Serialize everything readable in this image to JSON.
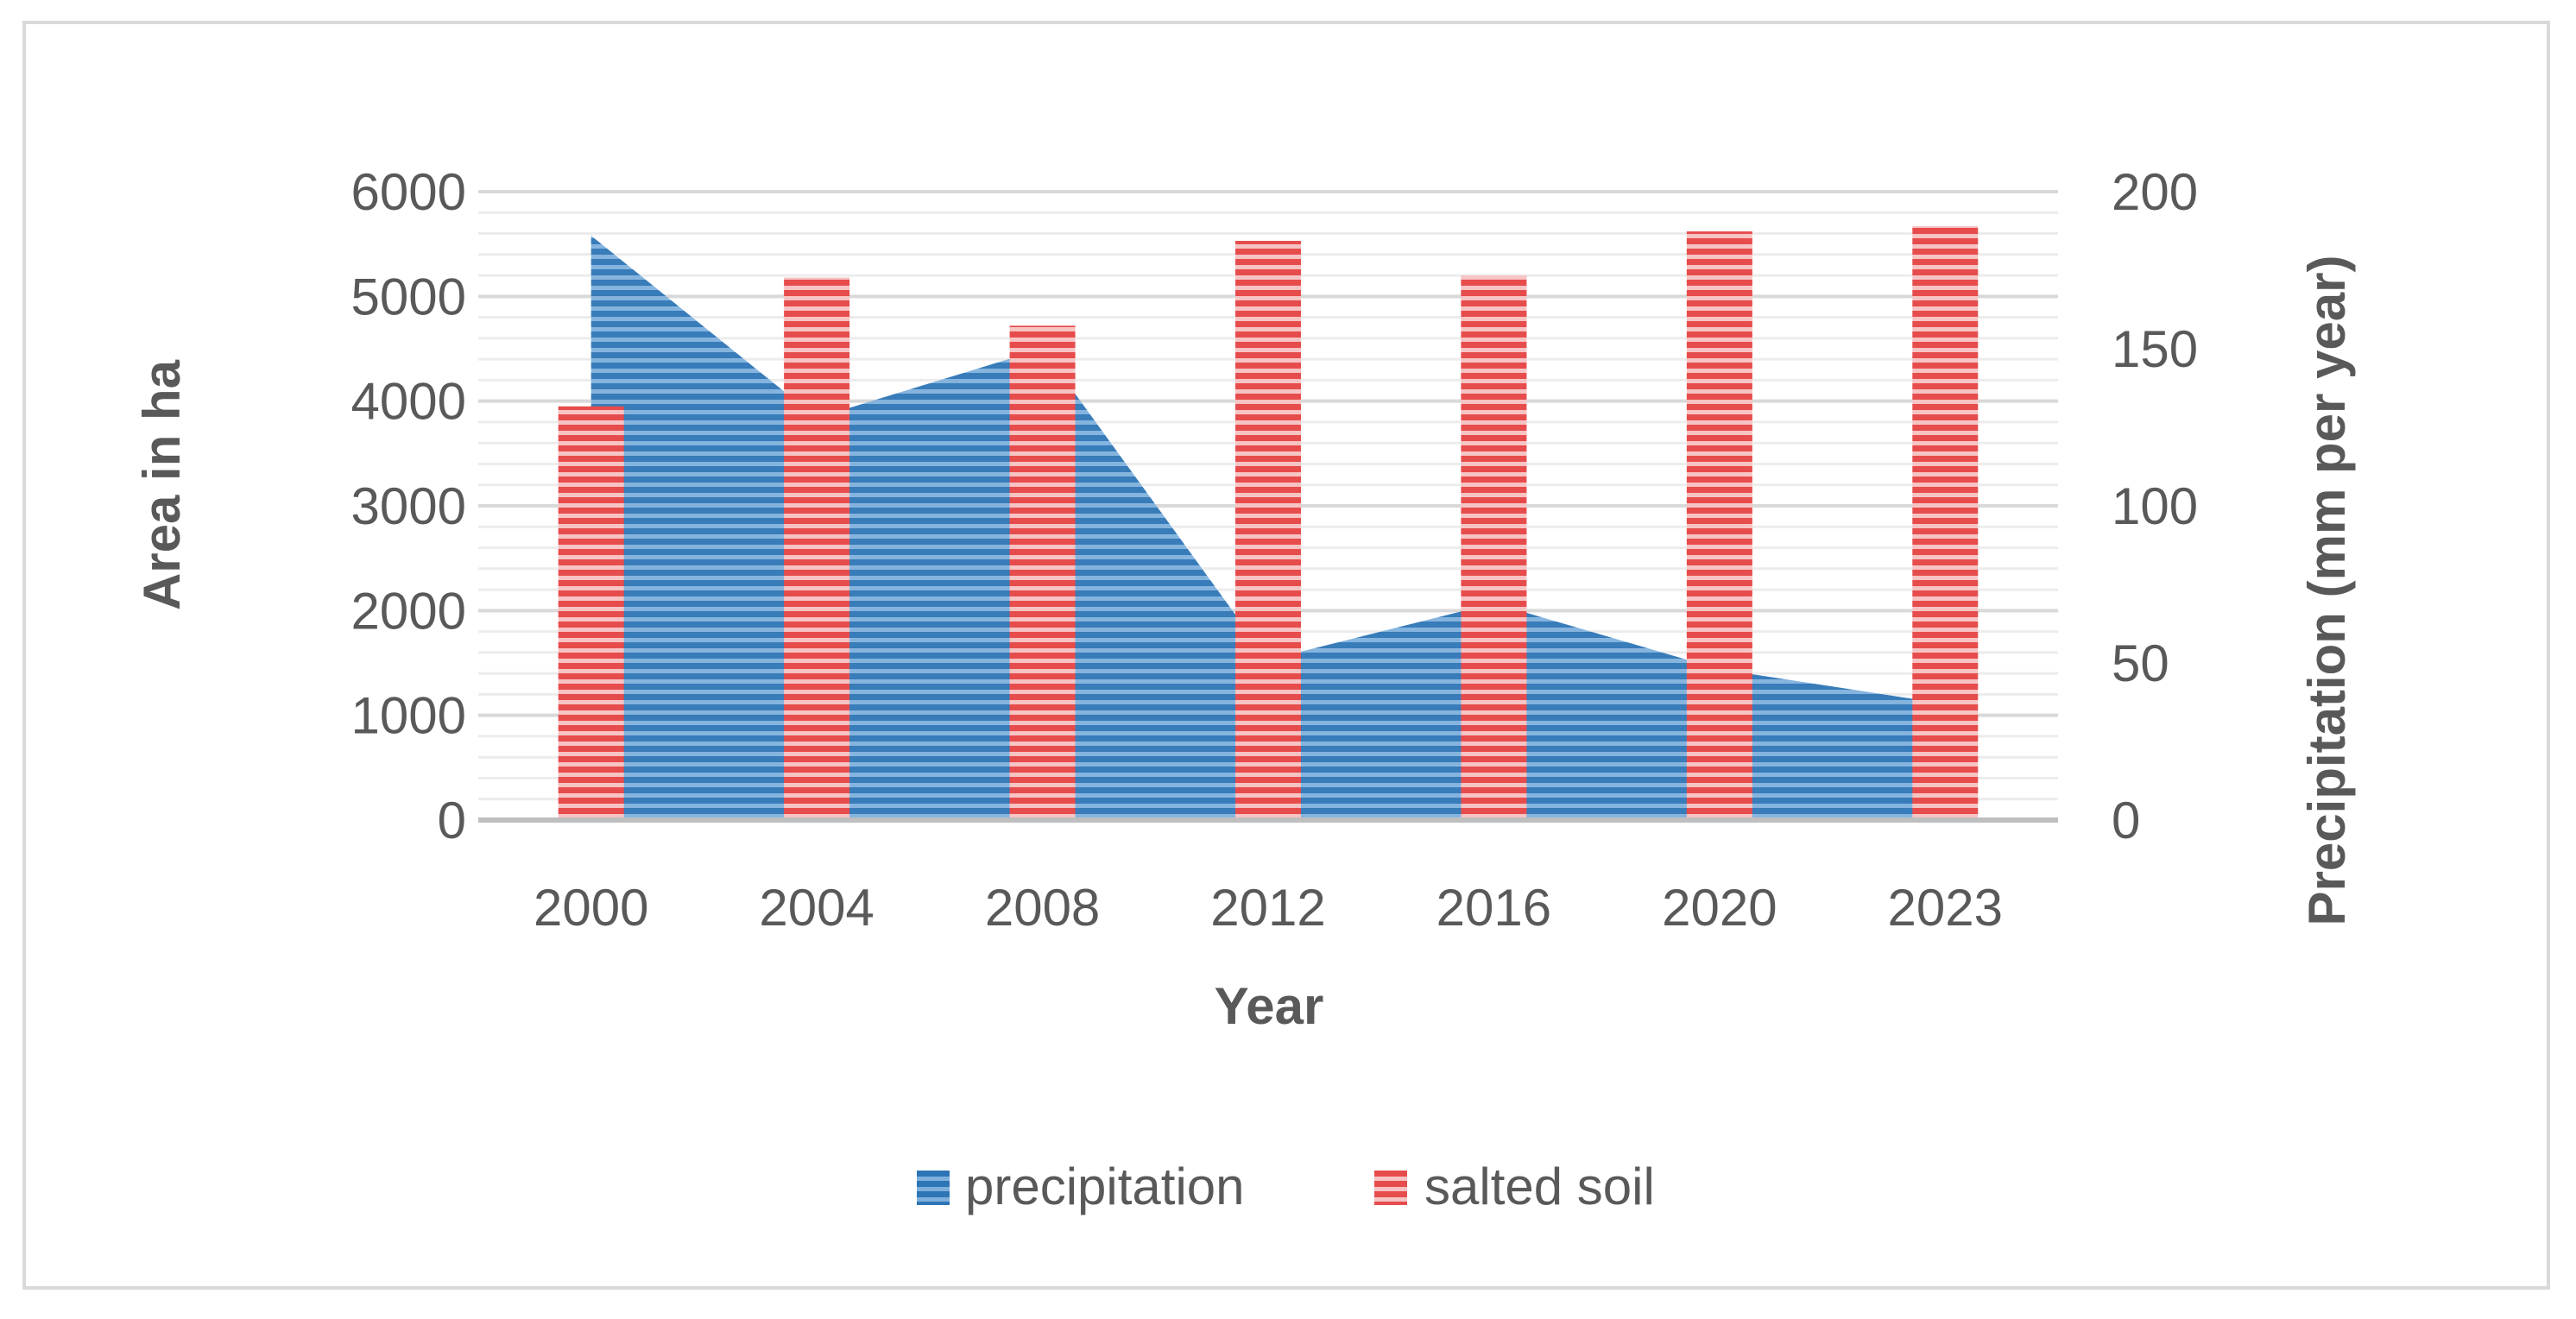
{
  "chart_data": {
    "type": "bar",
    "title": "",
    "categories": [
      "2000",
      "2004",
      "2008",
      "2012",
      "2016",
      "2020",
      "2023"
    ],
    "series": [
      {
        "name": "precipitation",
        "type": "area",
        "axis": "right",
        "color": "#2E75B6",
        "values": [
          186,
          128,
          150,
          51,
          69,
          48,
          37
        ]
      },
      {
        "name": "salted soil",
        "type": "bar",
        "axis": "left",
        "color": "#E74C4C",
        "values": [
          3950,
          5180,
          4720,
          5530,
          5200,
          5620,
          5670
        ]
      }
    ],
    "xlabel": "Year",
    "ylabel": "Area in ha",
    "y2label": "Precipitation (mm per year)",
    "ylim": [
      0,
      6000
    ],
    "y2lim": [
      0,
      200
    ],
    "yticks": [
      "0",
      "1000",
      "2000",
      "3000",
      "4000",
      "5000",
      "6000"
    ],
    "y2ticks": [
      "0",
      "50",
      "100",
      "150",
      "200"
    ],
    "legend_position": "bottom",
    "grid": true
  }
}
